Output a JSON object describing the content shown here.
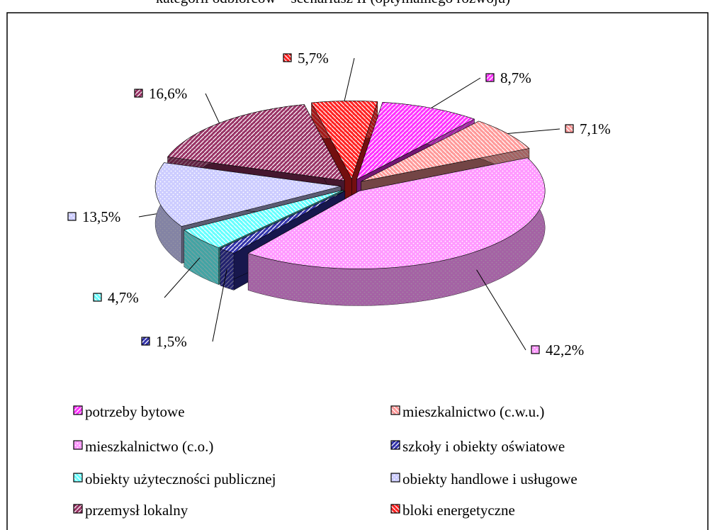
{
  "chart_data": {
    "type": "pie",
    "title": "kategorii odbiorców – scenariusz II (optymalnego rozwoju)",
    "categories": [
      "potrzeby bytowe",
      "mieszkalnictwo (c.w.u.)",
      "mieszkalnictwo (c.o.)",
      "szkoły i obiekty oświatowe",
      "obiekty użyteczności publicznej",
      "obiekty handlowe i  usługowe",
      "przemysł lokalny",
      "bloki energetyczne"
    ],
    "values": [
      8.7,
      7.1,
      42.2,
      1.5,
      4.7,
      13.5,
      16.6,
      5.7
    ],
    "value_labels": [
      "8,7%",
      "7,1%",
      "42,2%",
      "1,5%",
      "4,7%",
      "13,5%",
      "16,6%",
      "5,7%"
    ],
    "colors": [
      "#ff33ff",
      "#ff9999",
      "#ff99ff",
      "#3333aa",
      "#66ffff",
      "#ccccff",
      "#993366",
      "#ff2222"
    ],
    "legend": "bottom"
  }
}
